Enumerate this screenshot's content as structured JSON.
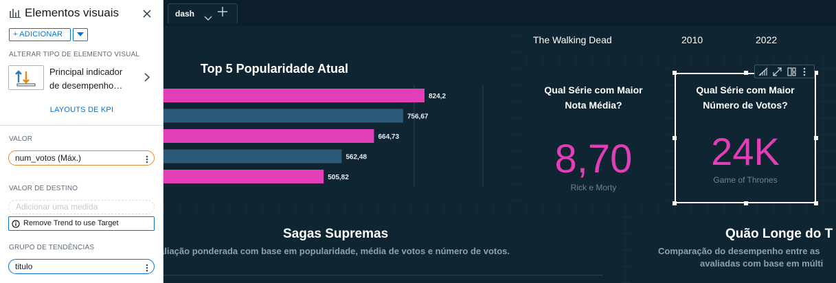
{
  "panel": {
    "title": "Elementos visuais",
    "add_label": "+ ADICIONAR",
    "change_type_label": "ALTERAR TIPO DE ELEMENTO VISUAL",
    "visual_type_line1": "Principal indicador",
    "visual_type_line2": "de desempenho…",
    "kpi_layouts": "LAYOUTS DE KPI",
    "value_label": "VALOR",
    "value_field": "num_votos (Máx.)",
    "target_label": "VALOR DE DESTINO",
    "target_placeholder": "Adicionar uma medida",
    "target_info": "Remove Trend to use Target",
    "trend_label": "GRUPO DE TENDÊNCIAS",
    "trend_field": "titulo"
  },
  "tabs": [
    {
      "label": "dash"
    }
  ],
  "dashboard": {
    "bar_chart_title": "Top 5 Popularidade Atual",
    "filter_row": {
      "series": "The Walking Dead",
      "start_year": "2010",
      "end_year": "2022"
    },
    "kpi_rating": {
      "title_line1": "Qual Série com Maior",
      "title_line2": "Nota Média?",
      "value": "8,70",
      "subtitle": "Rick e Morty"
    },
    "kpi_votes": {
      "title_line1": "Qual Série com Maior",
      "title_line2": "Número de Votos?",
      "value": "24K",
      "subtitle": "Game of Thrones"
    },
    "sagas": {
      "title": "Sagas Supremas",
      "subtitle": "aliação ponderada com base em popularidade, média de votos e número de votos."
    },
    "distance": {
      "title": "Quão Longe do T",
      "subtitle_line1": "Comparação do desempenho entre as",
      "subtitle_line2": "avaliadas com base em múlti"
    }
  },
  "chart_data": {
    "type": "bar",
    "orientation": "horizontal",
    "title": "Top 5 Popularidade Atual",
    "values": [
      824.2,
      756.67,
      664.73,
      562.48,
      505.82
    ],
    "value_labels": [
      "824,2",
      "756,67",
      "664,73",
      "562,48",
      "505,82"
    ],
    "colors": [
      "#e13eb7",
      "#2a5a78",
      "#e13eb7",
      "#2a5a78",
      "#e13eb7"
    ]
  },
  "colors": {
    "accent_pink": "#e13eb7",
    "bar_blue": "#2a5a78",
    "panel_link": "#0972d3",
    "field_orange": "#e0883a"
  }
}
